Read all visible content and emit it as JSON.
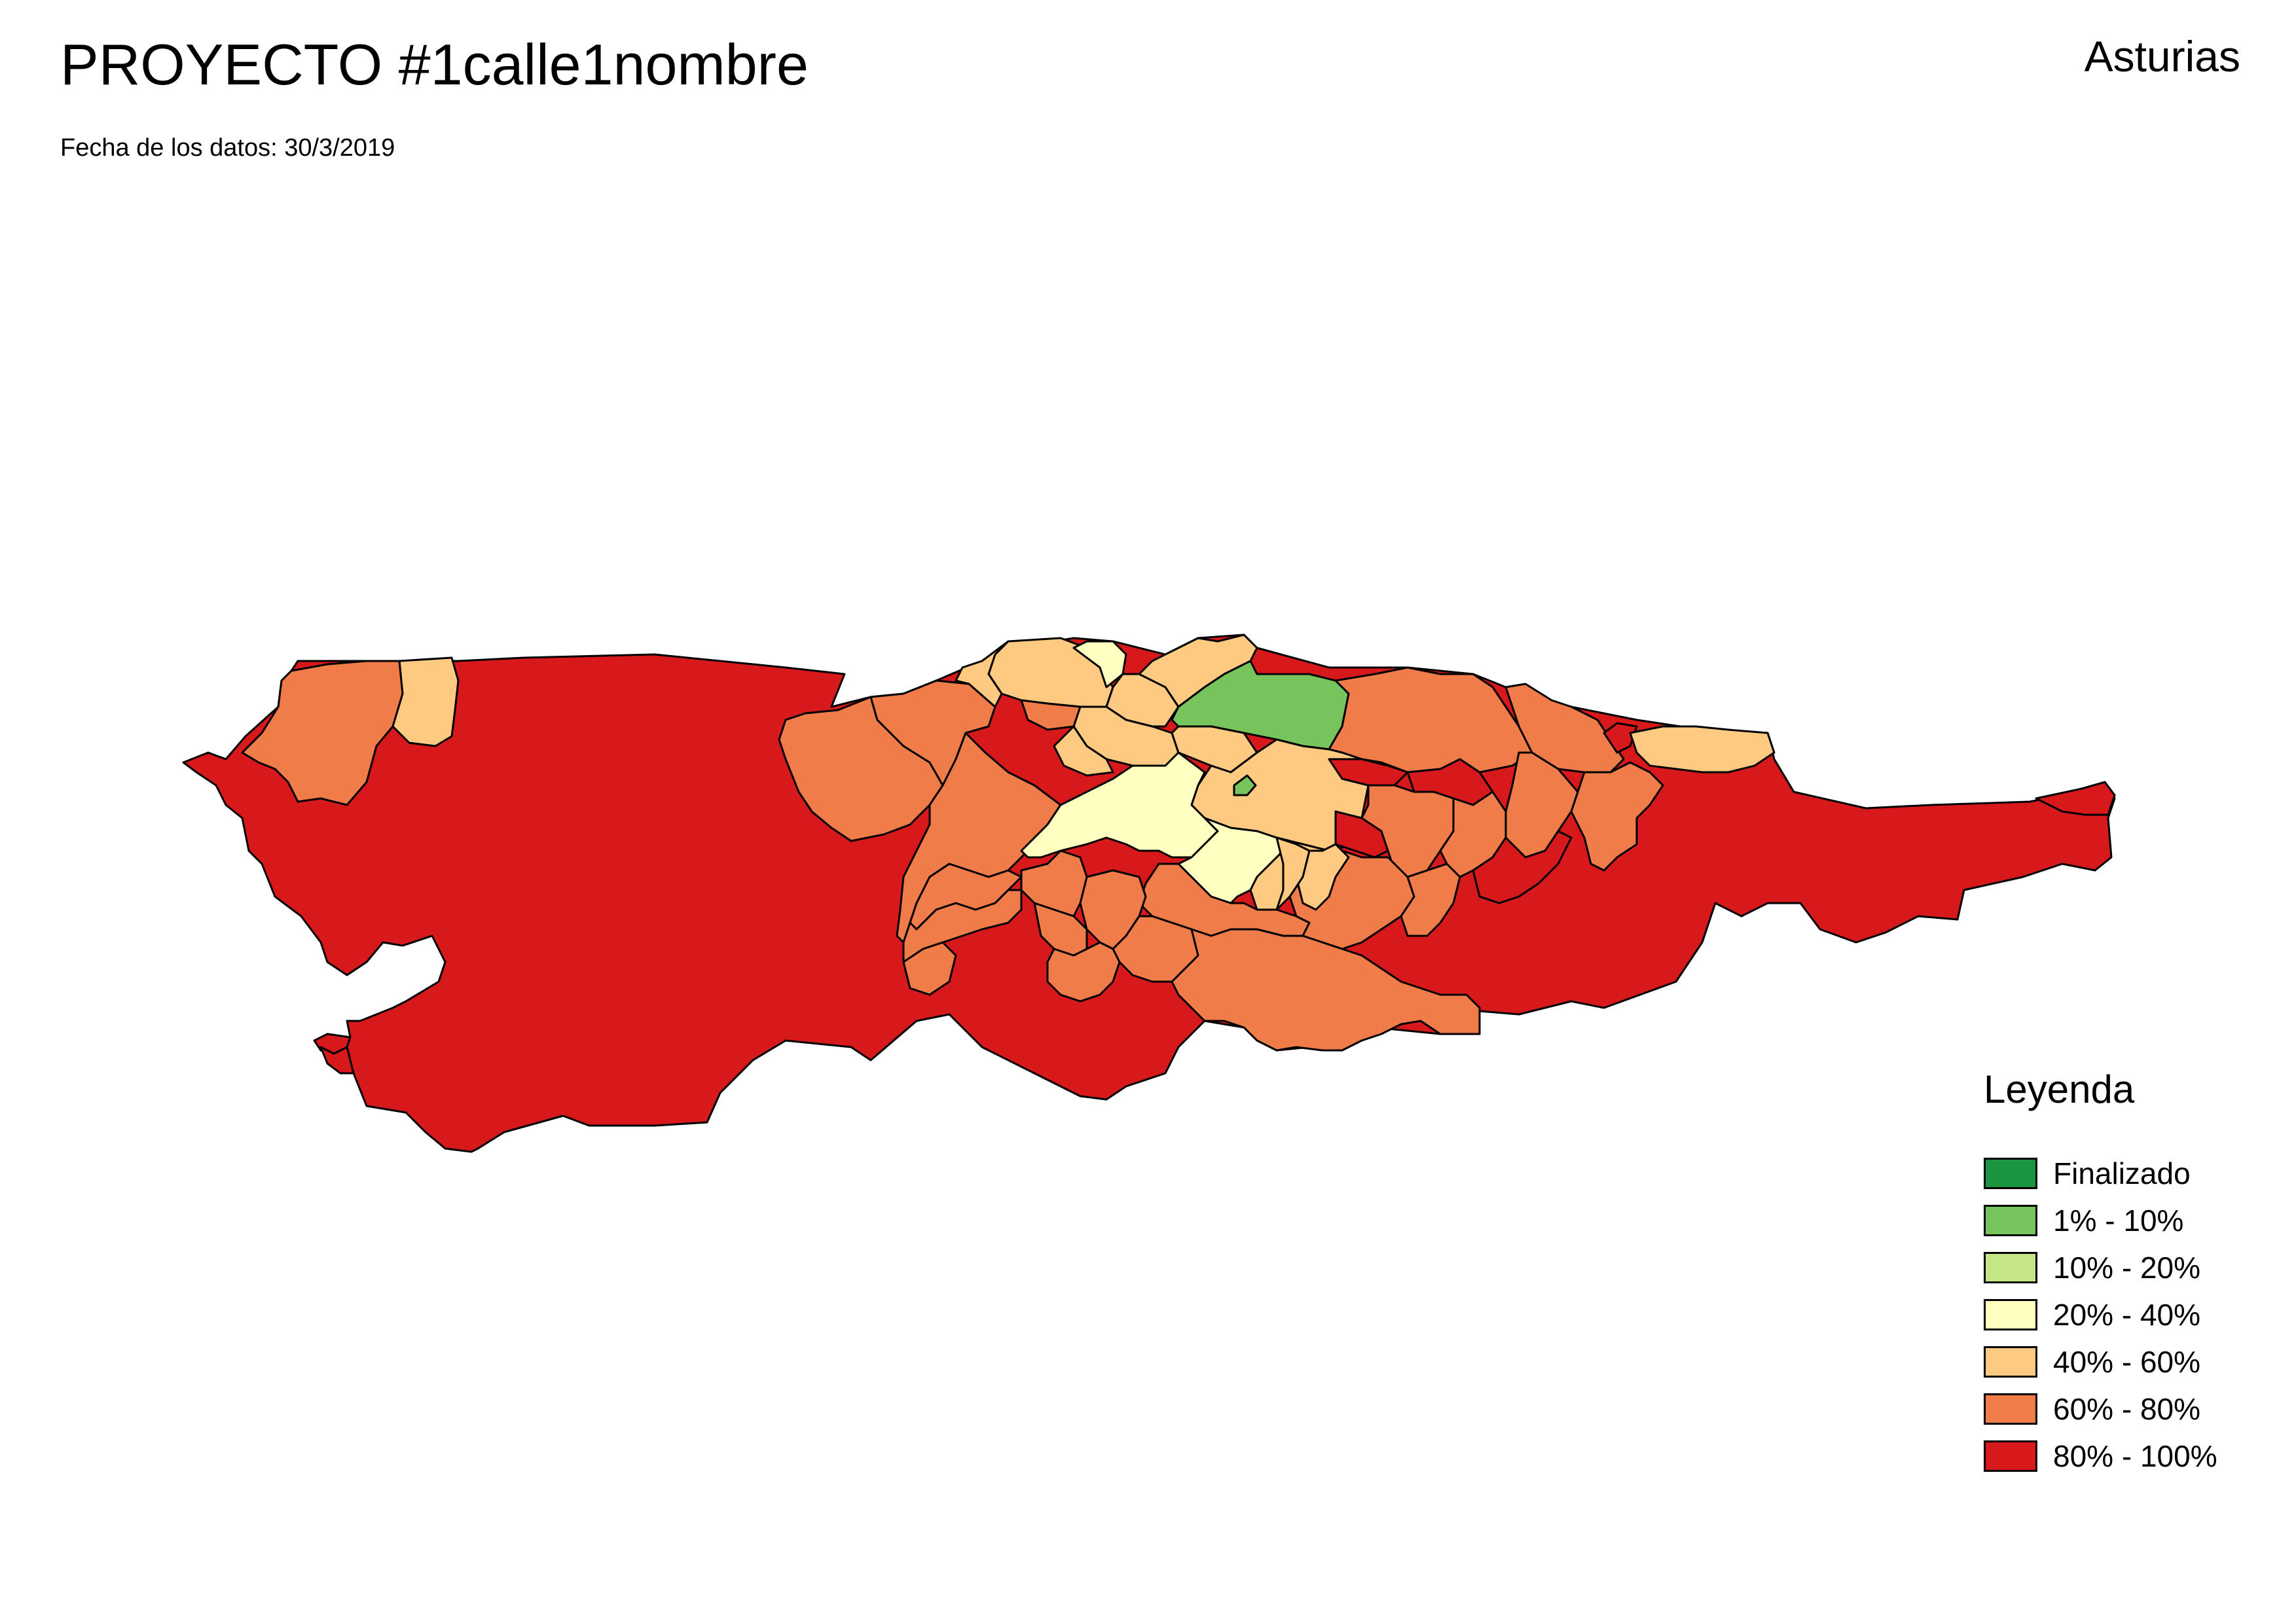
{
  "header": {
    "title": "PROYECTO #1calle1nombre",
    "subtitle": "Fecha de los datos: 30/3/2019",
    "region": "Asturias"
  },
  "legend": {
    "title": "Leyenda",
    "items": [
      {
        "label": "Finalizado",
        "color": "#1a9641"
      },
      {
        "label": "1% - 10%",
        "color": "#77c35c"
      },
      {
        "label": "10% - 20%",
        "color": "#c4e687"
      },
      {
        "label": "20% - 40%",
        "color": "#ffffc0"
      },
      {
        "label": "40% - 60%",
        "color": "#fec980"
      },
      {
        "label": "60% - 80%",
        "color": "#f07c4a"
      },
      {
        "label": "80% - 100%",
        "color": "#d7191c"
      }
    ]
  }
}
